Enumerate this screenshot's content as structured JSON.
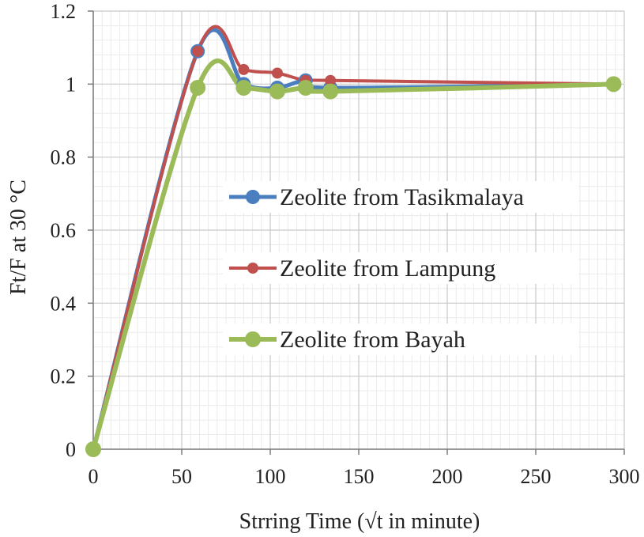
{
  "chart_data": {
    "type": "line",
    "title": "",
    "xlabel": "Strring Time (√t in minute)",
    "ylabel": "Ft/F  at  30 °C",
    "xlim": [
      0,
      300
    ],
    "ylim": [
      0,
      1.2
    ],
    "xticks": [
      0,
      50,
      100,
      150,
      200,
      250,
      300
    ],
    "yticks": [
      0,
      0.2,
      0.4,
      0.6,
      0.8,
      1,
      1.2
    ],
    "xtick_labels": [
      "0",
      "50",
      "100",
      "150",
      "200",
      "250",
      "300"
    ],
    "ytick_labels": [
      "0",
      "0.2",
      "0.4",
      "0.6",
      "0.8",
      "1",
      "1.2"
    ],
    "grid": true,
    "smooth": true,
    "legend_position": "center-right",
    "series": [
      {
        "name": "Zeolite from Tasikmalaya",
        "color": "#4a7ebf",
        "x": [
          0,
          59,
          85,
          104,
          120,
          134,
          294
        ],
        "y": [
          0,
          1.09,
          1.0,
          0.99,
          1.01,
          0.99,
          1.0
        ]
      },
      {
        "name": "Zeolite from Lampung",
        "color": "#c0504d",
        "x": [
          0,
          59,
          85,
          104,
          120,
          134,
          294
        ],
        "y": [
          0,
          1.09,
          1.04,
          1.03,
          1.01,
          1.01,
          1.0
        ]
      },
      {
        "name": "Zeolite from Bayah",
        "color": "#9bbb59",
        "x": [
          0,
          59,
          85,
          104,
          120,
          134,
          294
        ],
        "y": [
          0,
          0.99,
          0.99,
          0.98,
          0.99,
          0.98,
          1.0
        ]
      }
    ]
  }
}
